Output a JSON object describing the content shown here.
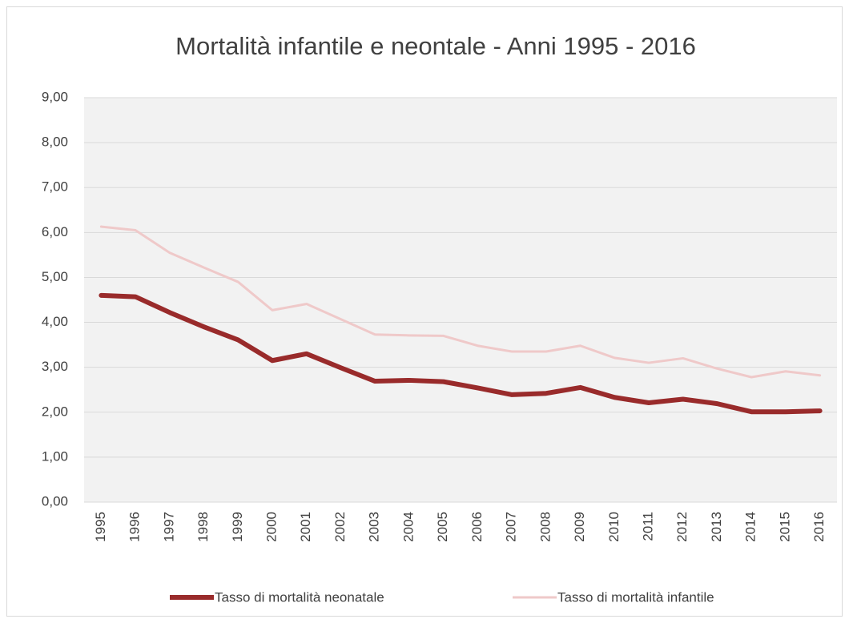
{
  "chart_data": {
    "type": "line",
    "title": "Mortalità infantile e neontale - Anni 1995 - 2016",
    "categories": [
      "1995",
      "1996",
      "1997",
      "1998",
      "1999",
      "2000",
      "2001",
      "2002",
      "2003",
      "2004",
      "2005",
      "2006",
      "2007",
      "2008",
      "2009",
      "2010",
      "2011",
      "2012",
      "2013",
      "2014",
      "2015",
      "2016"
    ],
    "series": [
      {
        "name": "Tasso di mortalità neonatale",
        "color": "#992b2b",
        "width": 6,
        "values": [
          4.6,
          4.57,
          4.22,
          3.9,
          3.61,
          3.15,
          3.3,
          2.99,
          2.69,
          2.71,
          2.68,
          2.54,
          2.39,
          2.42,
          2.55,
          2.33,
          2.21,
          2.29,
          2.19,
          2.01,
          2.01,
          2.03
        ]
      },
      {
        "name": "Tasso di mortalità infantile",
        "color": "#efc9c9",
        "width": 3,
        "values": [
          6.13,
          6.05,
          5.55,
          5.22,
          4.9,
          4.27,
          4.41,
          4.07,
          3.73,
          3.71,
          3.7,
          3.48,
          3.35,
          3.35,
          3.48,
          3.21,
          3.1,
          3.2,
          2.97,
          2.78,
          2.91,
          2.82
        ]
      }
    ],
    "ylim": [
      0,
      9
    ],
    "yticks": [
      {
        "value": 0,
        "label": "0,00"
      },
      {
        "value": 1,
        "label": "1,00"
      },
      {
        "value": 2,
        "label": "2,00"
      },
      {
        "value": 3,
        "label": "3,00"
      },
      {
        "value": 4,
        "label": "4,00"
      },
      {
        "value": 5,
        "label": "5,00"
      },
      {
        "value": 6,
        "label": "6,00"
      },
      {
        "value": 7,
        "label": "7,00"
      },
      {
        "value": 8,
        "label": "8,00"
      },
      {
        "value": 9,
        "label": "9,00"
      }
    ],
    "grid": true,
    "legend": "bottom"
  }
}
